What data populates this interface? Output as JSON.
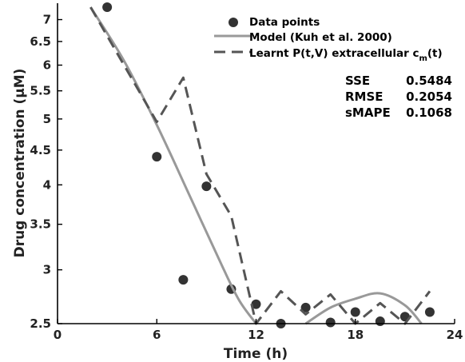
{
  "chart_data": {
    "type": "line",
    "xlabel": "Time (h)",
    "ylabel": "Drug concentration (μM)",
    "xlim": [
      0,
      24
    ],
    "ylim": [
      2.5,
      7.4
    ],
    "yscale": "log",
    "xticks": [
      0,
      6,
      12,
      18,
      24
    ],
    "yticks": [
      2.5,
      3,
      3.5,
      4,
      4.5,
      5,
      5.5,
      6,
      6.5,
      7
    ],
    "series": [
      {
        "name": "Data points",
        "style": "markers",
        "color": "#333333",
        "x": [
          3.0,
          6.0,
          7.6,
          9.0,
          10.5,
          12.0,
          13.5,
          15.0,
          16.5,
          18.0,
          19.5,
          21.0,
          22.5
        ],
        "y": [
          7.3,
          4.4,
          2.9,
          3.98,
          2.81,
          2.67,
          2.49,
          2.64,
          2.51,
          2.6,
          2.52,
          2.56,
          2.6
        ]
      },
      {
        "name": "Model (Kuh et al. 2000)",
        "style": "solid",
        "color": "#999999",
        "x": [
          2.0,
          4.0,
          6.0,
          8.0,
          10.0,
          11.0,
          12.0,
          14.0,
          15.0,
          16.5,
          18.0,
          19.5,
          21.0,
          22.0
        ],
        "y": [
          7.3,
          6.1,
          4.9,
          3.85,
          3.02,
          2.7,
          2.46,
          null,
          2.5,
          2.64,
          2.72,
          2.77,
          2.66,
          2.5
        ]
      },
      {
        "name": "Learnt P(t,V) extracellular c",
        "name_subscript": "m",
        "name_suffix": "(t)",
        "style": "dashed",
        "color": "#555555",
        "x": [
          2.0,
          6.0,
          7.6,
          9.0,
          10.5,
          12.0,
          13.5,
          15.0,
          16.5,
          18.0,
          19.5,
          21.0,
          22.5
        ],
        "y": [
          7.3,
          4.95,
          5.75,
          4.15,
          3.6,
          2.5,
          2.79,
          2.58,
          2.76,
          2.5,
          2.68,
          2.5,
          2.79
        ]
      }
    ],
    "legend_position": "top-right",
    "annotations": [
      {
        "label": "SSE",
        "value": "0.5484"
      },
      {
        "label": "RMSE",
        "value": "0.2054"
      },
      {
        "label": "sMAPE",
        "value": "0.1068"
      }
    ]
  }
}
